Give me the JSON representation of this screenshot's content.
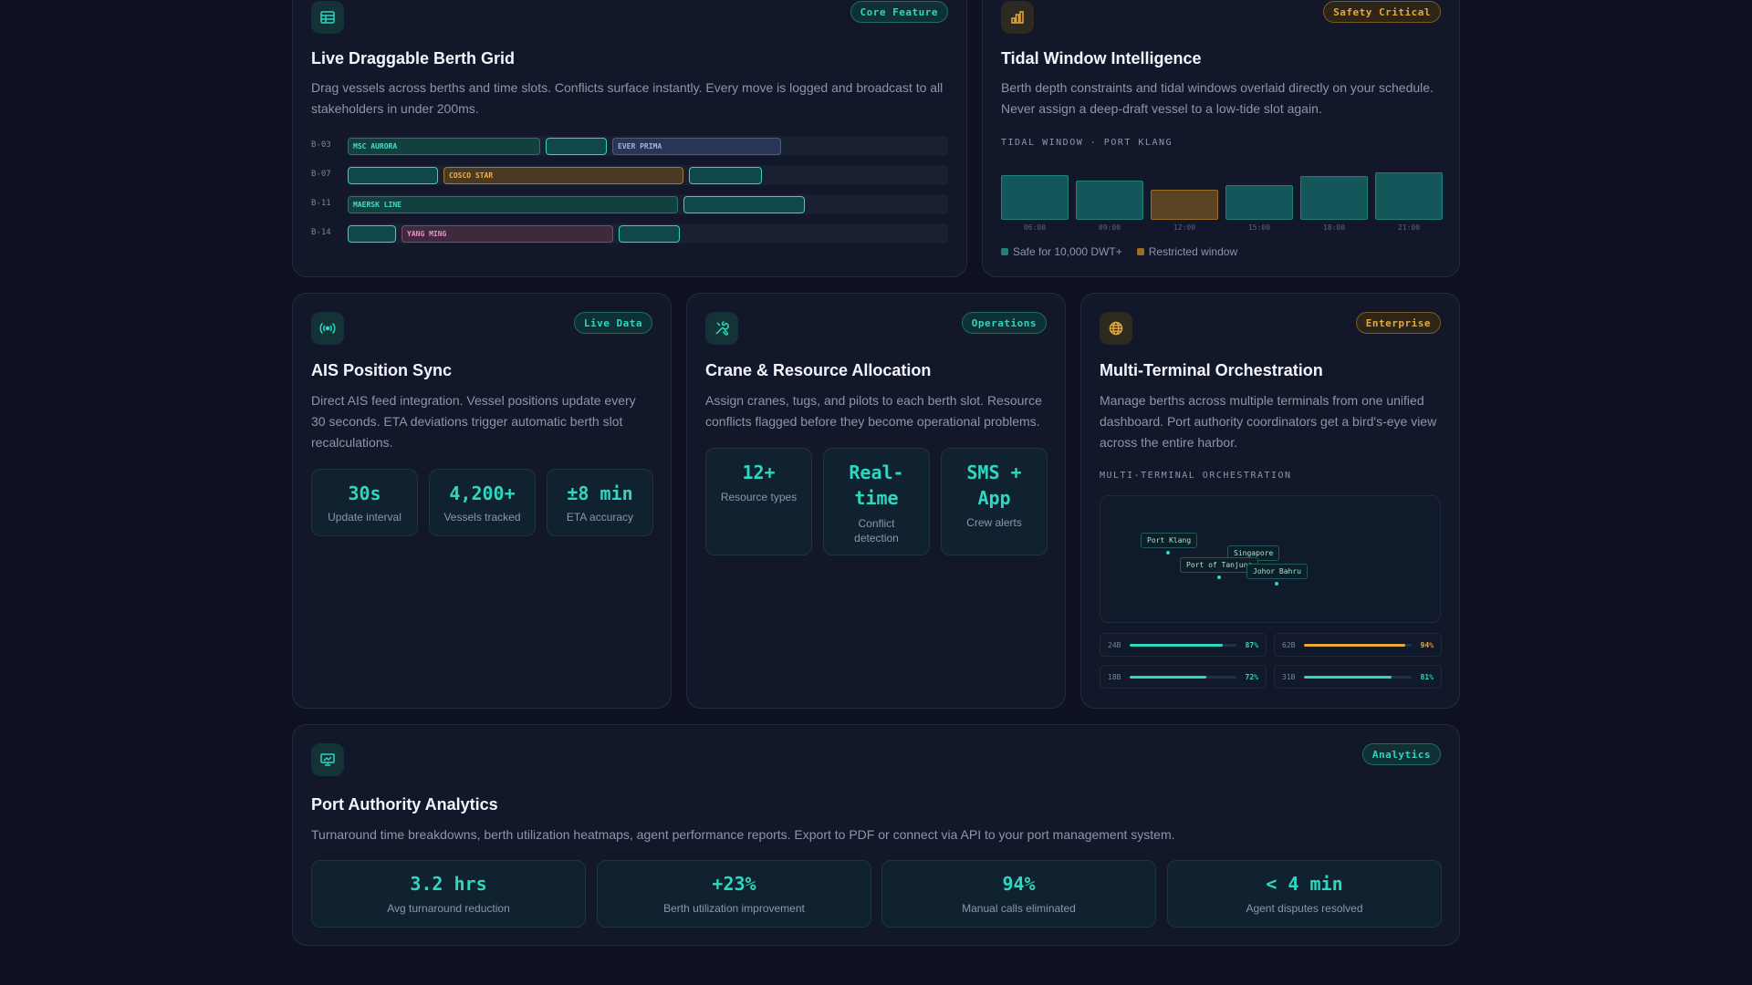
{
  "berth_grid": {
    "badge": "Core Feature",
    "title": "Live Draggable Berth Grid",
    "description": "Drag vessels across berths and time slots. Conflicts surface instantly. Every move is logged and broadcast to all stakeholders in under 200ms.",
    "rows": [
      {
        "berth": "B-03",
        "slots": [
          "MSC AURORA",
          "",
          "EVER PRIMA"
        ]
      },
      {
        "berth": "B-07",
        "slots": [
          "",
          "COSCO STAR",
          ""
        ]
      },
      {
        "berth": "B-11",
        "slots": [
          "MAERSK LINE",
          ""
        ]
      },
      {
        "berth": "B-14",
        "slots": [
          "",
          "YANG MING",
          ""
        ]
      }
    ]
  },
  "tidal": {
    "badge": "Safety Critical",
    "title": "Tidal Window Intelligence",
    "description": "Berth depth constraints and tidal windows overlaid directly on your schedule. Never assign a deep-draft vessel to a low-tide slot again.",
    "section_label": "TIDAL WINDOW · PORT KLANG",
    "times": [
      "06:00",
      "09:00",
      "12:00",
      "15:00",
      "18:00",
      "21:00"
    ],
    "levels": [
      0.82,
      0.72,
      0.55,
      0.64,
      0.8,
      0.87
    ],
    "restricted": [
      false,
      false,
      true,
      false,
      false,
      false
    ],
    "legend_safe": "Safe for 10,000 DWT+",
    "legend_restricted": "Restricted window",
    "colors": {
      "safe": "#1e8079",
      "restricted": "#9a6e2a"
    }
  },
  "ais": {
    "badge": "Live Data",
    "title": "AIS Position Sync",
    "description": "Direct AIS feed integration. Vessel positions update every 30 seconds. ETA deviations trigger automatic berth slot recalculations.",
    "stats": [
      {
        "value": "30s",
        "label": "Update interval"
      },
      {
        "value": "4,200+",
        "label": "Vessels tracked"
      },
      {
        "value": "±8 min",
        "label": "ETA accuracy"
      }
    ]
  },
  "crane": {
    "badge": "Operations",
    "title": "Crane & Resource Allocation",
    "description": "Assign cranes, tugs, and pilots to each berth slot. Resource conflicts flagged before they become operational problems.",
    "stats": [
      {
        "value": "12+",
        "label": "Resource types"
      },
      {
        "value_line1": "Real-",
        "value_line2": "time",
        "label_line1": "Conflict",
        "label_line2": "detection"
      },
      {
        "value_line1": "SMS +",
        "value_line2": "App",
        "label": "Crew alerts"
      }
    ]
  },
  "multi_terminal": {
    "badge": "Enterprise",
    "title": "Multi-Terminal Orchestration",
    "description": "Manage berths across multiple terminals from one unified dashboard. Port authority coordinators get a bird's-eye view across the entire harbor.",
    "section_label": "MULTI-TERMINAL ORCHESTRATION",
    "map_ports": [
      "Port Klang",
      "Singapore",
      "Port of Tanjung",
      "Johor Bahru"
    ],
    "utilization": [
      {
        "code": "24B",
        "percent": "87%",
        "fraction": 0.87,
        "color": "#2fd6c0"
      },
      {
        "code": "62B",
        "percent": "94%",
        "fraction": 0.94,
        "color": "#e6a93a"
      },
      {
        "code": "18B",
        "percent": "72%",
        "fraction": 0.72,
        "color": "#2fd6c0"
      },
      {
        "code": "31B",
        "percent": "81%",
        "fraction": 0.81,
        "color": "#2fd6c0"
      }
    ]
  },
  "analytics": {
    "badge": "Analytics",
    "title": "Port Authority Analytics",
    "description": "Turnaround time breakdowns, berth utilization heatmaps, agent performance reports. Export to PDF or connect via API to your port management system.",
    "stats": [
      {
        "value": "3.2 hrs",
        "label": "Avg turnaround reduction"
      },
      {
        "value": "+23%",
        "label": "Berth utilization improvement"
      },
      {
        "value": "94%",
        "label": "Manual calls eliminated"
      },
      {
        "value": "< 4 min",
        "label": "Agent disputes resolved"
      }
    ]
  },
  "icons": [
    "table-icon",
    "bar-chart-icon",
    "broadcast-icon",
    "tools-icon",
    "globe-icon",
    "presentation-chart-icon"
  ],
  "accent": "#2fd6c0",
  "warning": "#e6a93a"
}
